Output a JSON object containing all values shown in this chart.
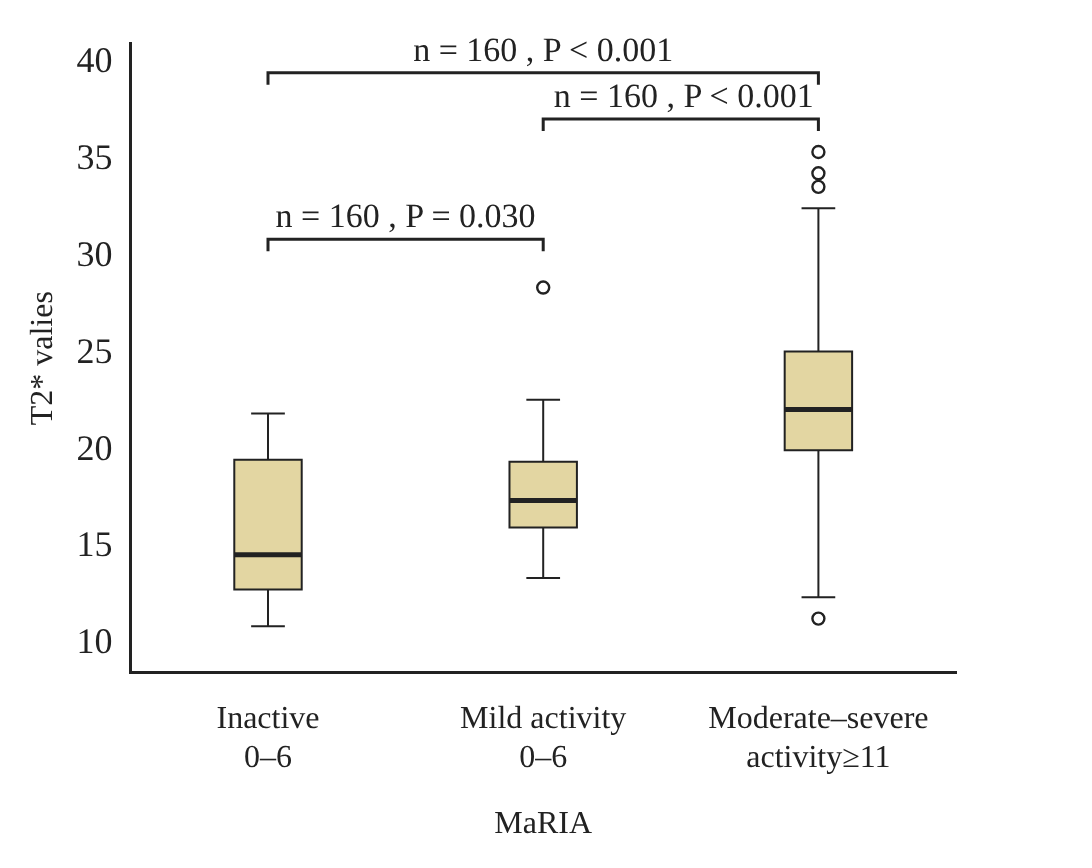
{
  "chart_data": {
    "type": "box",
    "xlabel": "MaRIA",
    "ylabel": "T2* valies",
    "categories": [
      "Inactive\n0–6",
      "Mild activity\n0–6",
      "Moderate–severe\nactivity≥11"
    ],
    "color": "#e3d6a2",
    "boxes": [
      {
        "low": 10.9,
        "q1": 12.8,
        "median": 14.6,
        "q3": 19.5,
        "high": 21.9
      },
      {
        "low": 13.4,
        "q1": 16.0,
        "median": 17.4,
        "q3": 19.4,
        "high": 22.6,
        "outliers": [
          28.4
        ]
      },
      {
        "low": 12.4,
        "q1": 20.0,
        "median": 22.1,
        "q3": 25.1,
        "high": 32.5,
        "outliers": [
          35.4,
          34.3,
          33.6,
          11.3
        ]
      }
    ],
    "ylim": [
      8.5,
      41
    ],
    "yticks": [
      10,
      15,
      20,
      25,
      30,
      35,
      40
    ],
    "annotations": [
      "n = 160 , P < 0.001",
      "n = 160 , P < 0.001",
      "n = 160 , P = 0.030"
    ]
  }
}
